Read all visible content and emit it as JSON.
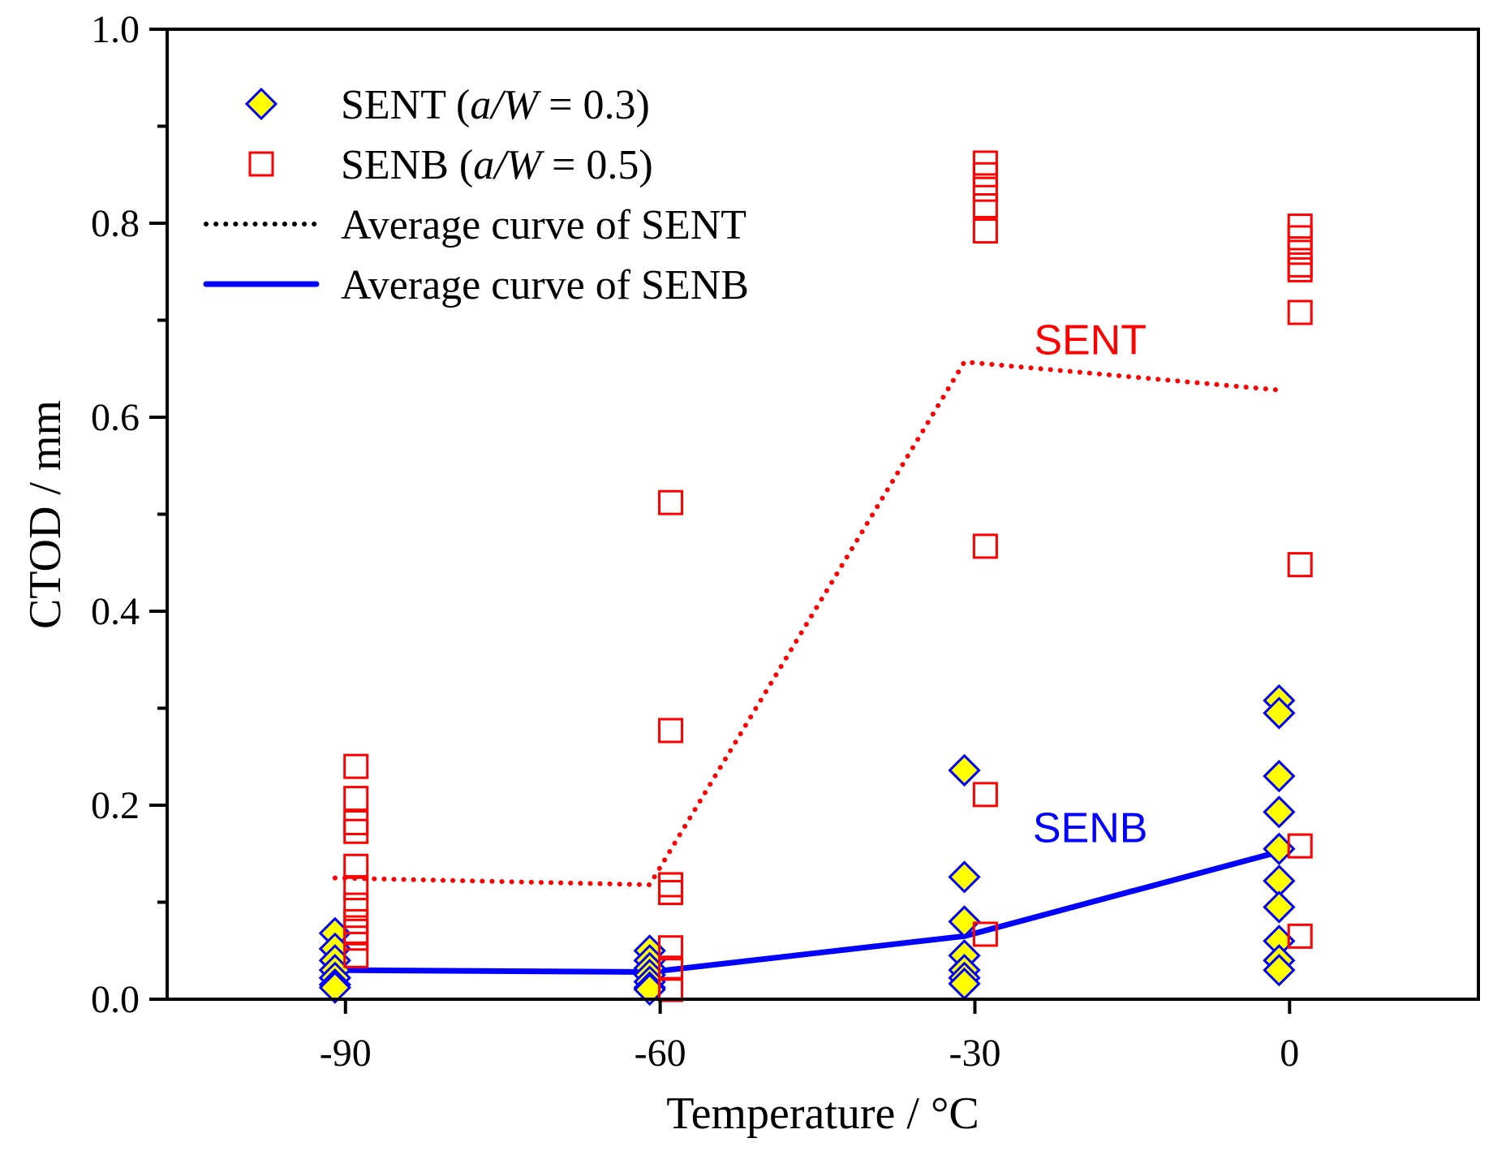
{
  "chart_data": {
    "type": "scatter",
    "xlabel": "Temperature / °C",
    "ylabel": "CTOD / mm",
    "xlim": [
      -107,
      18
    ],
    "ylim": [
      0,
      1.0
    ],
    "x_ticks": [
      -90,
      -60,
      -30,
      0
    ],
    "x_tick_labels": [
      "-90",
      "-60",
      "-30",
      "0"
    ],
    "y_ticks": [
      0,
      0.2,
      0.4,
      0.6,
      0.8,
      1.0
    ],
    "y_tick_labels": [
      "0.0",
      "0.2",
      "0.4",
      "0.6",
      "0.8",
      "1.0"
    ],
    "y_minor_step": 0.1,
    "grid": false,
    "legend_position": "top-left",
    "series": [
      {
        "name": "SENT (a/W = 0.3)",
        "name_parts": [
          "SENT (",
          "a/W",
          " = 0.3)"
        ],
        "kind": "scatter",
        "marker": "diamond",
        "fill": "#ffff00",
        "stroke": "#0000ff",
        "points": [
          [
            -91,
            0.068
          ],
          [
            -91,
            0.052
          ],
          [
            -91,
            0.04
          ],
          [
            -91,
            0.03
          ],
          [
            -91,
            0.022
          ],
          [
            -91,
            0.015
          ],
          [
            -91,
            0.012
          ],
          [
            -61,
            0.05
          ],
          [
            -61,
            0.04
          ],
          [
            -61,
            0.032
          ],
          [
            -61,
            0.025
          ],
          [
            -61,
            0.018
          ],
          [
            -61,
            0.012
          ],
          [
            -61,
            0.01
          ],
          [
            -31,
            0.236
          ],
          [
            -31,
            0.126
          ],
          [
            -31,
            0.08
          ],
          [
            -31,
            0.045
          ],
          [
            -31,
            0.03
          ],
          [
            -31,
            0.022
          ],
          [
            -31,
            0.016
          ],
          [
            -1,
            0.308
          ],
          [
            -1,
            0.295
          ],
          [
            -1,
            0.23
          ],
          [
            -1,
            0.193
          ],
          [
            -1,
            0.155
          ],
          [
            -1,
            0.122
          ],
          [
            -1,
            0.095
          ],
          [
            -1,
            0.06
          ],
          [
            -1,
            0.04
          ],
          [
            -1,
            0.03
          ]
        ]
      },
      {
        "name": "SENB (a/W = 0.5)",
        "name_parts": [
          "SENB (",
          "a/W",
          " = 0.5)"
        ],
        "kind": "scatter",
        "marker": "square",
        "fill": "none",
        "stroke": "#ff0000",
        "points": [
          [
            -89,
            0.24
          ],
          [
            -89,
            0.207
          ],
          [
            -89,
            0.182
          ],
          [
            -89,
            0.173
          ],
          [
            -89,
            0.137
          ],
          [
            -89,
            0.115
          ],
          [
            -89,
            0.097
          ],
          [
            -89,
            0.08
          ],
          [
            -89,
            0.07
          ],
          [
            -89,
            0.063
          ],
          [
            -89,
            0.045
          ],
          [
            -59,
            0.512
          ],
          [
            -59,
            0.277
          ],
          [
            -59,
            0.118
          ],
          [
            -59,
            0.11
          ],
          [
            -59,
            0.053
          ],
          [
            -59,
            0.032
          ],
          [
            -59,
            0.01
          ],
          [
            -29,
            0.862
          ],
          [
            -29,
            0.85
          ],
          [
            -29,
            0.835
          ],
          [
            -29,
            0.818
          ],
          [
            -29,
            0.792
          ],
          [
            -29,
            0.467
          ],
          [
            -29,
            0.211
          ],
          [
            -29,
            0.067
          ],
          [
            1,
            0.797
          ],
          [
            1,
            0.785
          ],
          [
            1,
            0.77
          ],
          [
            1,
            0.757
          ],
          [
            1,
            0.752
          ],
          [
            1,
            0.708
          ],
          [
            1,
            0.448
          ],
          [
            1,
            0.158
          ],
          [
            1,
            0.065
          ]
        ]
      },
      {
        "name": "Average curve of SENT",
        "kind": "line",
        "style": "dotted",
        "legend_color": "#000000",
        "color": "#ff0000",
        "points": [
          [
            -91,
            0.125
          ],
          [
            -61,
            0.118
          ],
          [
            -31,
            0.657
          ],
          [
            -1,
            0.628
          ]
        ]
      },
      {
        "name": "Average curve of SENB",
        "kind": "line",
        "style": "solid",
        "legend_color": "#0000ff",
        "color": "#0000ff",
        "points": [
          [
            -91,
            0.03
          ],
          [
            -61,
            0.028
          ],
          [
            -31,
            0.065
          ],
          [
            -1,
            0.152
          ]
        ]
      }
    ],
    "annotations": [
      {
        "text": "SENT",
        "x": -19,
        "y": 0.665,
        "color": "#ff0000"
      },
      {
        "text": "SENB",
        "x": -19,
        "y": 0.162,
        "color": "#0000ff"
      }
    ]
  }
}
